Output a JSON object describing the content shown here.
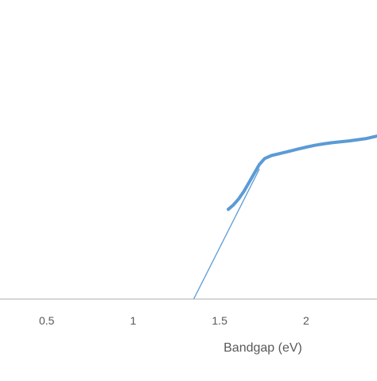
{
  "chart_data": {
    "type": "line",
    "xlabel": "Bandgap (eV)",
    "ylabel": "",
    "title": "",
    "xlim": [
      0.23,
      2.41
    ],
    "ylim": [
      0,
      1
    ],
    "x_ticks": [
      "0.5",
      "1",
      "1.5",
      "2"
    ],
    "x_tick_values": [
      0.5,
      1,
      1.5,
      2
    ],
    "grid": false,
    "legend": "none",
    "colors": {
      "series": "#5B9BD5",
      "axis": "#BFBFBF",
      "text": "#595959"
    },
    "series": [
      {
        "x": [
          1.55,
          1.58,
          1.61,
          1.64,
          1.67,
          1.7,
          1.73,
          1.76,
          1.8,
          1.85,
          1.9,
          1.95,
          2.0,
          2.05,
          2.1,
          2.15,
          2.2,
          2.25,
          2.3,
          2.35,
          2.41
        ],
        "y": [
          0.3,
          0.315,
          0.335,
          0.36,
          0.39,
          0.42,
          0.45,
          0.47,
          0.48,
          0.487,
          0.494,
          0.501,
          0.508,
          0.514,
          0.519,
          0.523,
          0.526,
          0.529,
          0.533,
          0.537,
          0.545
        ]
      }
    ],
    "fit_line": {
      "x": [
        1.35,
        1.73
      ],
      "y": [
        0,
        0.435
      ]
    }
  }
}
